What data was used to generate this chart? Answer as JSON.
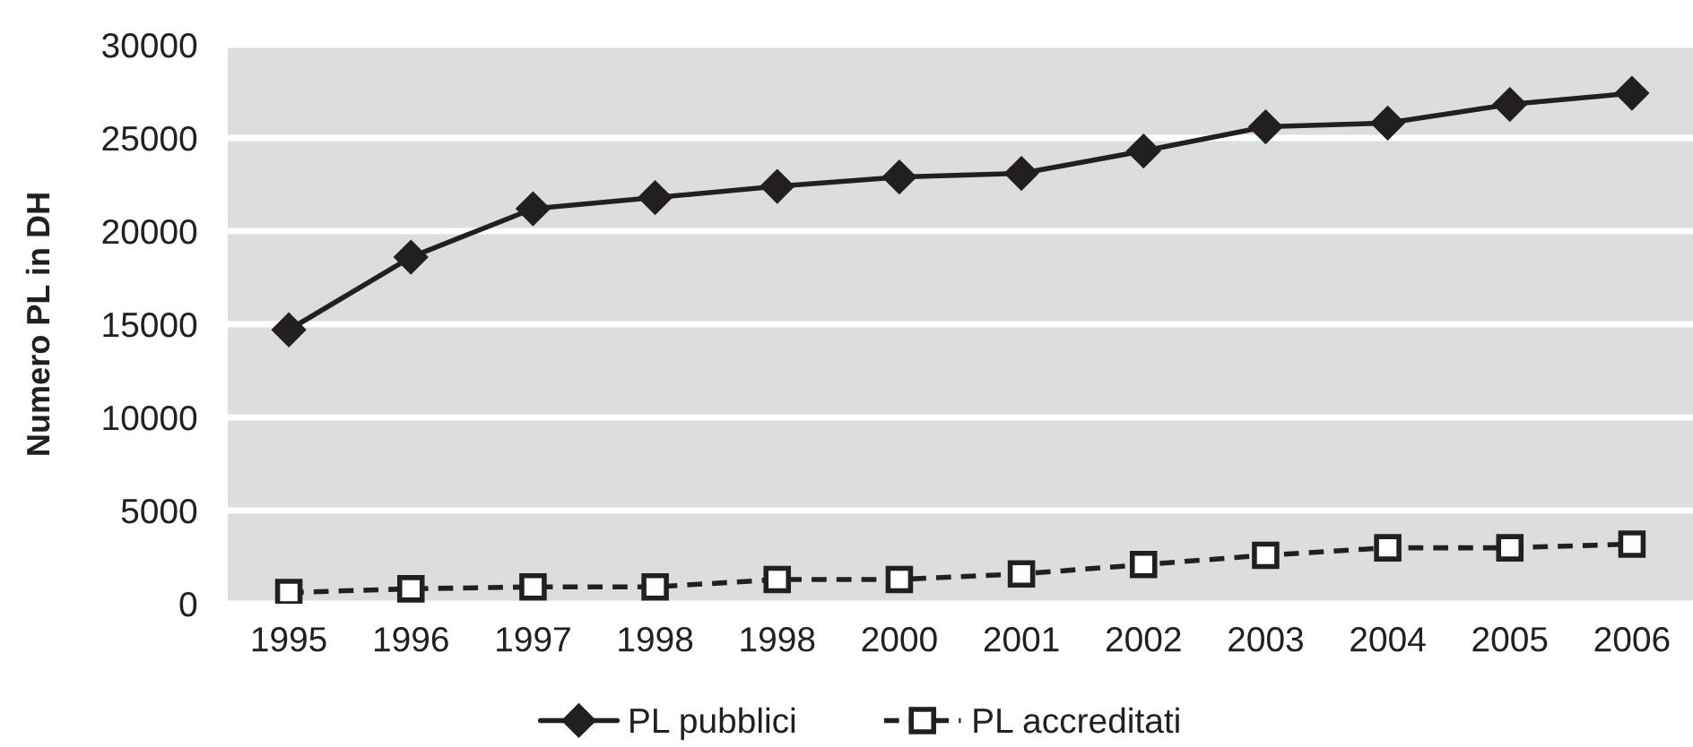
{
  "chart_data": {
    "type": "line",
    "ylabel": "Numero PL in DH",
    "categories": [
      "1995",
      "1996",
      "1997",
      "1998",
      "1998",
      "2000",
      "2001",
      "2002",
      "2003",
      "2004",
      "2005",
      "2006"
    ],
    "series": [
      {
        "name": "PL pubblici",
        "color": "#231f20",
        "marker": "diamond",
        "line_style": "solid",
        "values": [
          14700,
          18600,
          21200,
          21800,
          22400,
          22900,
          23100,
          24300,
          25600,
          25800,
          26800,
          27400
        ]
      },
      {
        "name": "PL accreditati",
        "color": "#231f20",
        "marker": "square",
        "line_style": "dashed",
        "values": [
          600,
          800,
          900,
          900,
          1300,
          1300,
          1600,
          2100,
          2600,
          3000,
          3000,
          3200
        ]
      }
    ],
    "ylim": [
      0,
      30000
    ],
    "yticks": [
      0,
      5000,
      10000,
      15000,
      20000,
      25000,
      30000
    ],
    "grid": "y",
    "legend": "bottom"
  }
}
